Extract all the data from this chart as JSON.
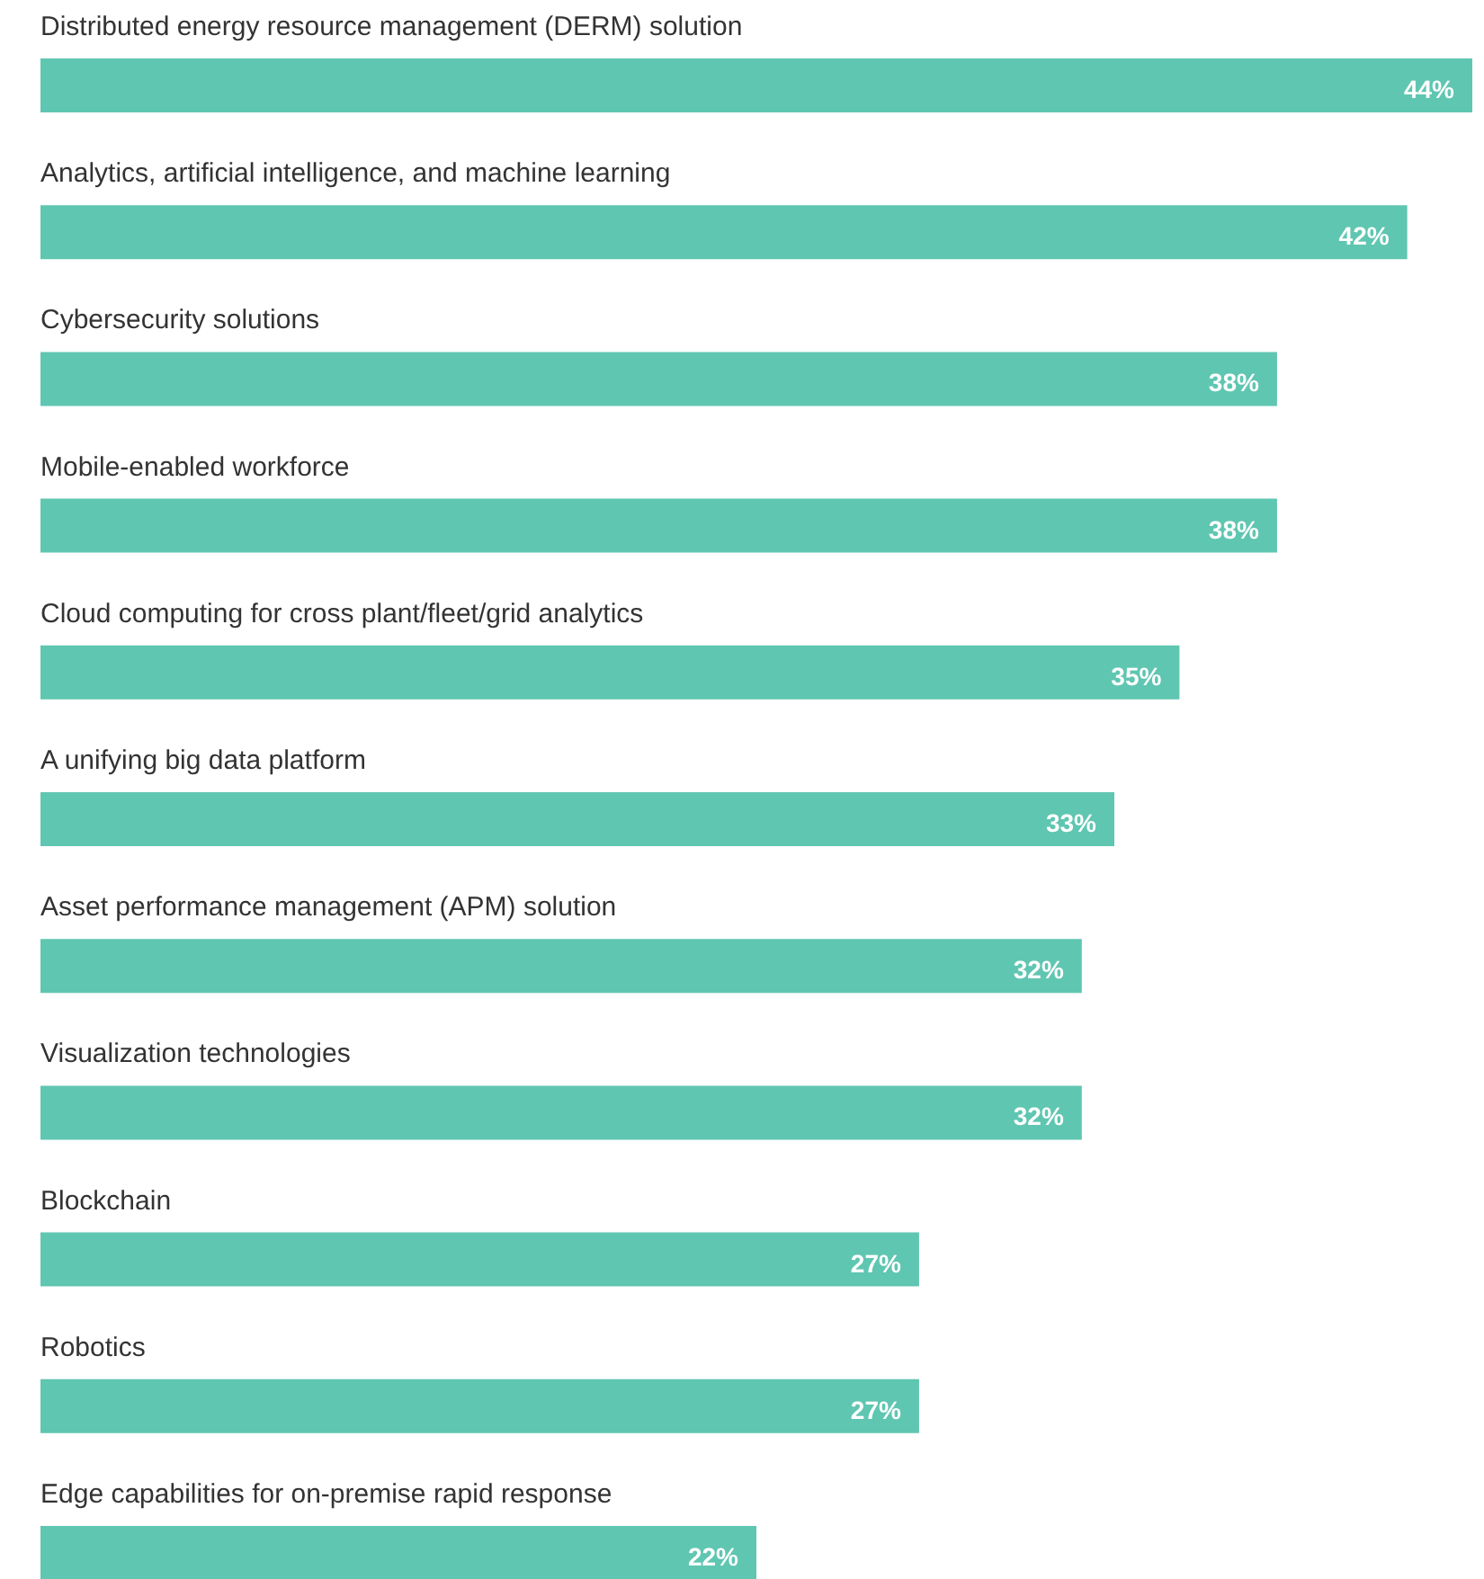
{
  "chart_data": {
    "type": "bar",
    "orientation": "horizontal",
    "categories": [
      "Distributed energy resource management (DERM) solution",
      "Analytics, artificial intelligence, and machine learning",
      "Cybersecurity solutions",
      "Mobile-enabled workforce",
      "Cloud computing for cross plant/fleet/grid analytics",
      "A unifying big data platform",
      "Asset performance management (APM) solution",
      "Visualization technologies",
      "Blockchain",
      "Robotics",
      "Edge capabilities for on-premise rapid response"
    ],
    "values": [
      44,
      42,
      38,
      38,
      35,
      33,
      32,
      32,
      27,
      27,
      22
    ],
    "value_labels": [
      "44%",
      "42%",
      "38%",
      "38%",
      "35%",
      "33%",
      "32%",
      "32%",
      "27%",
      "27%",
      "22%"
    ],
    "color": "#5fc6b1"
  }
}
